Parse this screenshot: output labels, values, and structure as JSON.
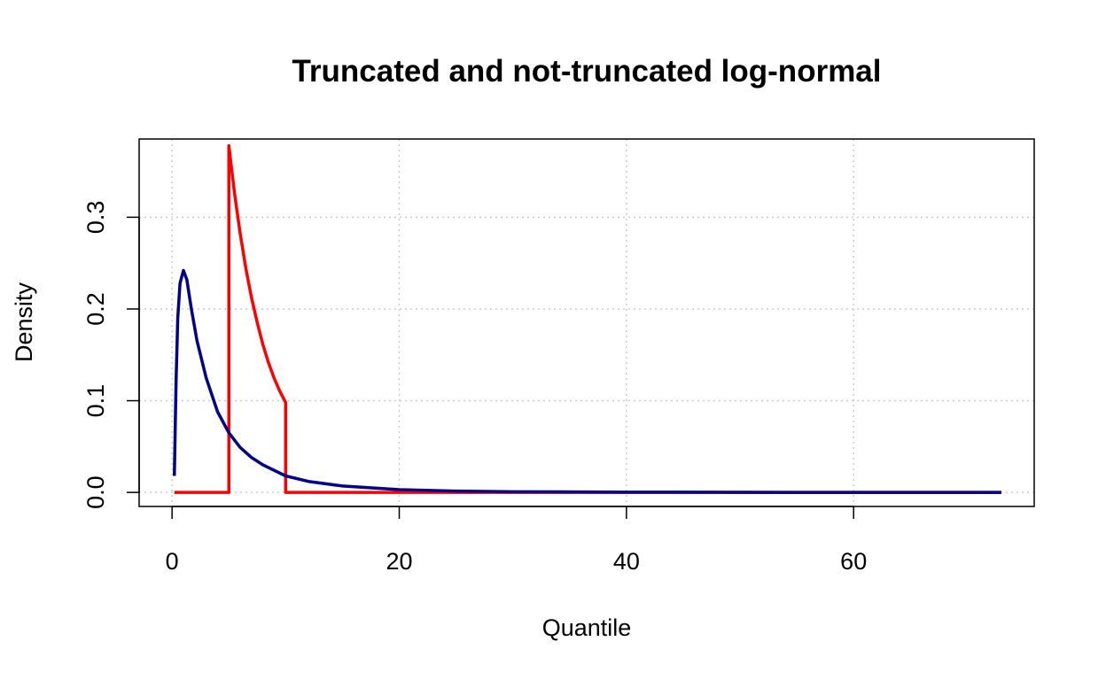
{
  "chart_data": {
    "type": "line",
    "title": "Truncated and not-truncated log-normal",
    "xlabel": "Quantile",
    "ylabel": "Density",
    "xlim": [
      -2.9,
      75.9
    ],
    "ylim": [
      -0.0153,
      0.3853
    ],
    "x_ticks": [
      0,
      20,
      40,
      60
    ],
    "x_tick_labels": [
      "0",
      "20",
      "40",
      "60"
    ],
    "y_ticks": [
      0.0,
      0.1,
      0.2,
      0.3
    ],
    "y_tick_labels": [
      "0.0",
      "0.1",
      "0.2",
      "0.3"
    ],
    "grid": true,
    "legend": "none",
    "series": [
      {
        "color": "#FF0000",
        "x": [
          0.2,
          5.0,
          5.0,
          5.5,
          6.0,
          6.5,
          7.0,
          7.5,
          8.0,
          8.5,
          9.0,
          9.5,
          10.0,
          10.0,
          20,
          30,
          40,
          50,
          60,
          73
        ],
        "y": [
          0.0,
          0.0,
          0.378,
          0.326,
          0.282,
          0.244,
          0.212,
          0.185,
          0.161,
          0.141,
          0.124,
          0.11,
          0.098,
          0.0,
          0.0,
          0.0,
          0.0,
          0.0,
          0.0,
          0.0
        ]
      },
      {
        "color": "#00008B",
        "x": [
          0.2,
          0.35,
          0.5,
          0.7,
          1.0,
          1.3,
          1.7,
          2.2,
          3.0,
          4.0,
          5.0,
          6.0,
          7.0,
          8.0,
          10.0,
          12.0,
          15.0,
          20.0,
          25.0,
          30.0,
          40.0,
          50.0,
          60.0,
          73.0
        ],
        "y": [
          0.018,
          0.12,
          0.19,
          0.228,
          0.242,
          0.232,
          0.2,
          0.165,
          0.125,
          0.088,
          0.065,
          0.049,
          0.038,
          0.03,
          0.018,
          0.012,
          0.007,
          0.003,
          0.0015,
          0.0008,
          0.0003,
          0.0001,
          5e-05,
          2e-05
        ]
      }
    ]
  }
}
